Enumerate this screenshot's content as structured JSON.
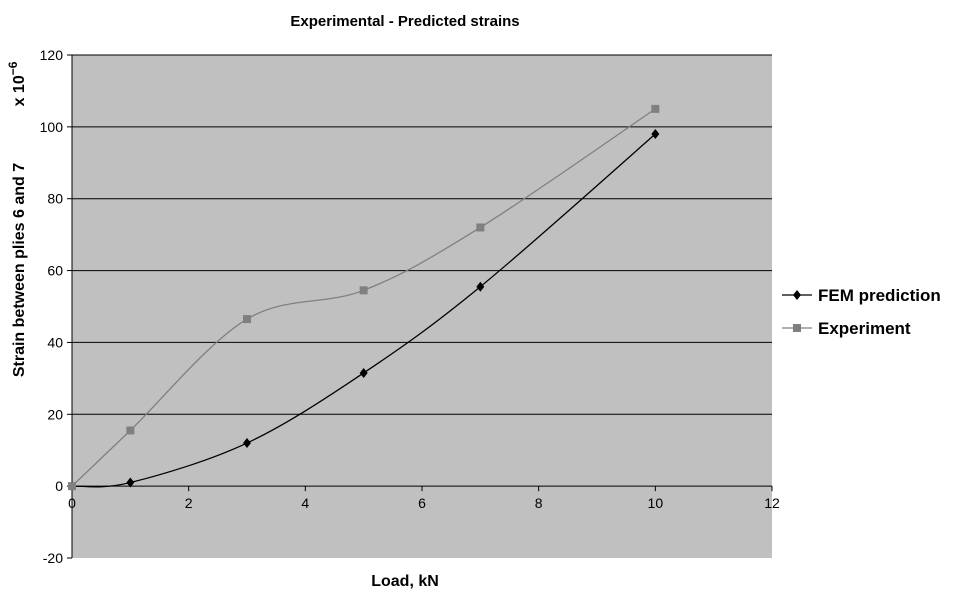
{
  "chart_data": {
    "type": "line",
    "title": "Experimental - Predicted strains",
    "xlabel": "Load, kN",
    "ylabel": "Strain between plies 6 and 7",
    "y_multiplier": {
      "base": "x 10",
      "exponent": "−6"
    },
    "xlim": [
      0,
      12
    ],
    "ylim": [
      -20,
      120
    ],
    "x_ticks": [
      "0",
      "2",
      "4",
      "6",
      "8",
      "10",
      "12"
    ],
    "y_ticks": [
      "-20",
      "0",
      "20",
      "40",
      "60",
      "80",
      "100",
      "120"
    ],
    "grid": "horizontal",
    "legend_position": "right",
    "plot_background": "#c0c0c0",
    "series": [
      {
        "name": "FEM prediction",
        "color": "#000000",
        "marker": "diamond",
        "x": [
          0,
          1,
          3,
          5,
          7,
          10
        ],
        "y": [
          0,
          1,
          12,
          31.5,
          55.5,
          98
        ]
      },
      {
        "name": "Experiment",
        "color": "#808080",
        "marker": "square",
        "x": [
          0,
          1,
          3,
          5,
          7,
          10
        ],
        "y": [
          0,
          15.5,
          46.5,
          54.5,
          72,
          105
        ]
      }
    ]
  }
}
